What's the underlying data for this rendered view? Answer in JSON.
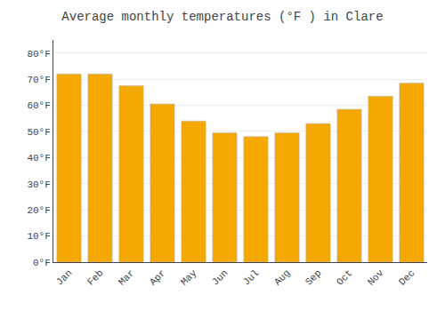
{
  "chart_data": {
    "type": "bar",
    "title": "Average monthly temperatures (°F ) in Clare",
    "categories": [
      "Jan",
      "Feb",
      "Mar",
      "Apr",
      "May",
      "Jun",
      "Jul",
      "Aug",
      "Sep",
      "Oct",
      "Nov",
      "Dec"
    ],
    "values": [
      72,
      72,
      67.5,
      60.5,
      54,
      49.5,
      48,
      49.5,
      53,
      58.5,
      63.5,
      68.5
    ],
    "color": "#F5A800",
    "ylim": [
      0,
      85
    ],
    "yticks": [
      {
        "value": 0,
        "label": "0°F"
      },
      {
        "value": 10,
        "label": "10°F"
      },
      {
        "value": 20,
        "label": "20°F"
      },
      {
        "value": 30,
        "label": "30°F"
      },
      {
        "value": 40,
        "label": "40°F"
      },
      {
        "value": 50,
        "label": "50°F"
      },
      {
        "value": 60,
        "label": "60°F"
      },
      {
        "value": 70,
        "label": "70°F"
      },
      {
        "value": 80,
        "label": "80°F"
      }
    ],
    "grid": true
  }
}
